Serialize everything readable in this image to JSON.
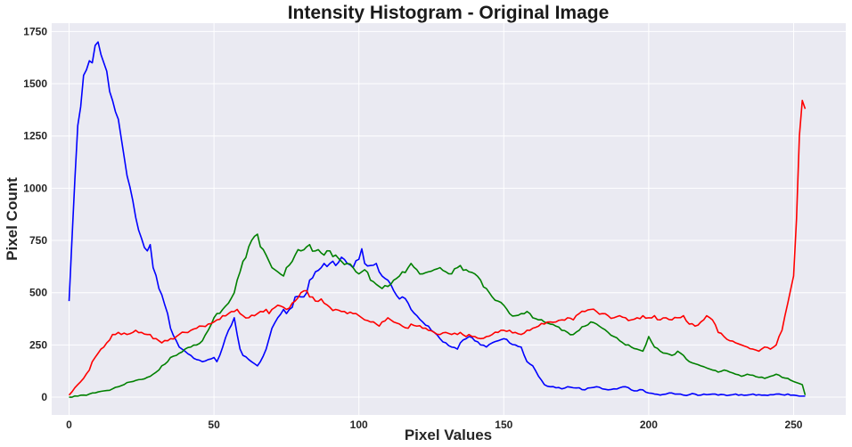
{
  "chart_data": {
    "type": "line",
    "title": "Intensity Histogram - Original Image",
    "xlabel": "Pixel Values",
    "ylabel": "Pixel Count",
    "xlim": [
      -6,
      268
    ],
    "ylim": [
      -85,
      1790
    ],
    "xticks": [
      0,
      50,
      100,
      150,
      200,
      250
    ],
    "yticks": [
      0,
      250,
      500,
      750,
      1000,
      1250,
      1500,
      1750
    ],
    "grid": true,
    "legend": "none",
    "background_color": "#eaeaf2",
    "x_anchor": [
      0,
      3,
      5,
      7,
      8,
      10,
      11,
      12,
      13,
      15,
      17,
      18,
      20,
      22,
      23,
      25,
      27,
      28,
      29,
      31,
      32,
      34,
      35,
      37,
      38,
      40,
      42,
      44,
      46,
      48,
      50,
      51,
      53,
      55,
      57,
      58,
      59,
      60,
      62,
      64,
      65,
      66,
      68,
      69,
      70,
      72,
      74,
      75,
      77,
      78,
      80,
      82,
      83,
      85,
      87,
      88,
      90,
      92,
      94,
      96,
      98,
      100,
      101,
      102,
      104,
      106,
      107,
      108,
      110,
      111,
      112,
      114,
      115,
      117,
      118,
      120,
      122,
      124,
      126,
      128,
      130,
      132,
      134,
      135,
      137,
      138,
      140,
      142,
      144,
      146,
      148,
      150,
      152,
      154,
      156,
      158,
      160,
      162,
      164,
      166,
      168,
      170,
      172,
      174,
      176,
      178,
      180,
      182,
      184,
      186,
      188,
      190,
      192,
      194,
      196,
      198,
      200,
      202,
      204,
      206,
      208,
      210,
      212,
      214,
      216,
      218,
      220,
      222,
      224,
      226,
      228,
      230,
      232,
      234,
      236,
      238,
      240,
      242,
      244,
      246,
      248,
      250,
      251,
      252,
      253,
      254,
      255
    ],
    "series": [
      {
        "color": "#0000ff",
        "values": [
          460,
          1300,
          1540,
          1610,
          1600,
          1700,
          1640,
          1600,
          1560,
          1420,
          1330,
          1240,
          1060,
          940,
          860,
          760,
          700,
          730,
          620,
          520,
          490,
          400,
          330,
          270,
          240,
          220,
          200,
          180,
          170,
          180,
          190,
          170,
          240,
          320,
          380,
          300,
          230,
          200,
          180,
          160,
          150,
          170,
          230,
          280,
          330,
          380,
          420,
          400,
          430,
          480,
          480,
          500,
          560,
          600,
          620,
          640,
          640,
          630,
          670,
          640,
          620,
          660,
          710,
          640,
          630,
          640,
          600,
          580,
          560,
          540,
          510,
          470,
          480,
          450,
          420,
          390,
          360,
          340,
          310,
          280,
          260,
          240,
          230,
          260,
          280,
          290,
          270,
          250,
          240,
          260,
          270,
          280,
          260,
          250,
          240,
          170,
          150,
          100,
          60,
          50,
          45,
          40,
          50,
          45,
          45,
          35,
          45,
          50,
          40,
          35,
          40,
          45,
          50,
          35,
          30,
          35,
          20,
          15,
          10,
          15,
          20,
          15,
          10,
          12,
          15,
          10,
          12,
          15,
          10,
          12,
          10,
          15,
          12,
          10,
          15,
          12,
          10,
          12,
          15,
          12,
          15,
          10,
          8,
          5,
          5,
          5
        ]
      },
      {
        "color": "#008000",
        "values": [
          0,
          5,
          10,
          15,
          20,
          25,
          28,
          30,
          32,
          40,
          50,
          55,
          70,
          75,
          80,
          85,
          95,
          100,
          110,
          130,
          150,
          170,
          190,
          200,
          210,
          230,
          240,
          250,
          270,
          320,
          380,
          400,
          420,
          450,
          500,
          560,
          600,
          650,
          720,
          770,
          780,
          720,
          680,
          650,
          620,
          600,
          580,
          620,
          650,
          680,
          700,
          720,
          730,
          700,
          690,
          680,
          700,
          680,
          650,
          640,
          620,
          590,
          600,
          610,
          560,
          540,
          530,
          520,
          530,
          540,
          560,
          580,
          600,
          620,
          640,
          610,
          590,
          600,
          610,
          620,
          600,
          590,
          620,
          630,
          610,
          600,
          590,
          560,
          520,
          480,
          460,
          440,
          400,
          390,
          400,
          410,
          380,
          370,
          360,
          350,
          340,
          320,
          310,
          300,
          320,
          340,
          360,
          350,
          330,
          310,
          290,
          270,
          250,
          240,
          230,
          220,
          290,
          240,
          220,
          210,
          200,
          220,
          200,
          170,
          160,
          150,
          140,
          130,
          120,
          130,
          120,
          110,
          100,
          110,
          105,
          95,
          90,
          100,
          110,
          95,
          90,
          75,
          70,
          65,
          60,
          10
        ]
      },
      {
        "color": "#ff0000",
        "values": [
          10,
          60,
          90,
          130,
          170,
          210,
          230,
          240,
          260,
          300,
          310,
          300,
          300,
          310,
          320,
          310,
          300,
          300,
          280,
          270,
          260,
          270,
          280,
          290,
          300,
          310,
          320,
          330,
          340,
          350,
          360,
          370,
          390,
          400,
          410,
          420,
          400,
          390,
          380,
          390,
          400,
          410,
          420,
          400,
          420,
          440,
          430,
          420,
          450,
          460,
          500,
          510,
          480,
          460,
          470,
          450,
          430,
          420,
          410,
          400,
          400,
          390,
          380,
          370,
          360,
          350,
          340,
          360,
          380,
          370,
          360,
          350,
          340,
          330,
          350,
          340,
          330,
          320,
          310,
          300,
          310,
          300,
          300,
          310,
          290,
          300,
          290,
          280,
          290,
          300,
          310,
          320,
          320,
          310,
          300,
          320,
          330,
          340,
          350,
          360,
          360,
          370,
          380,
          370,
          400,
          410,
          420,
          410,
          400,
          390,
          380,
          390,
          380,
          370,
          380,
          390,
          380,
          390,
          370,
          380,
          370,
          380,
          390,
          350,
          340,
          360,
          390,
          370,
          310,
          290,
          270,
          260,
          250,
          240,
          230,
          220,
          240,
          230,
          250,
          320,
          450,
          580,
          850,
          1250,
          1420,
          1380
        ]
      }
    ]
  }
}
